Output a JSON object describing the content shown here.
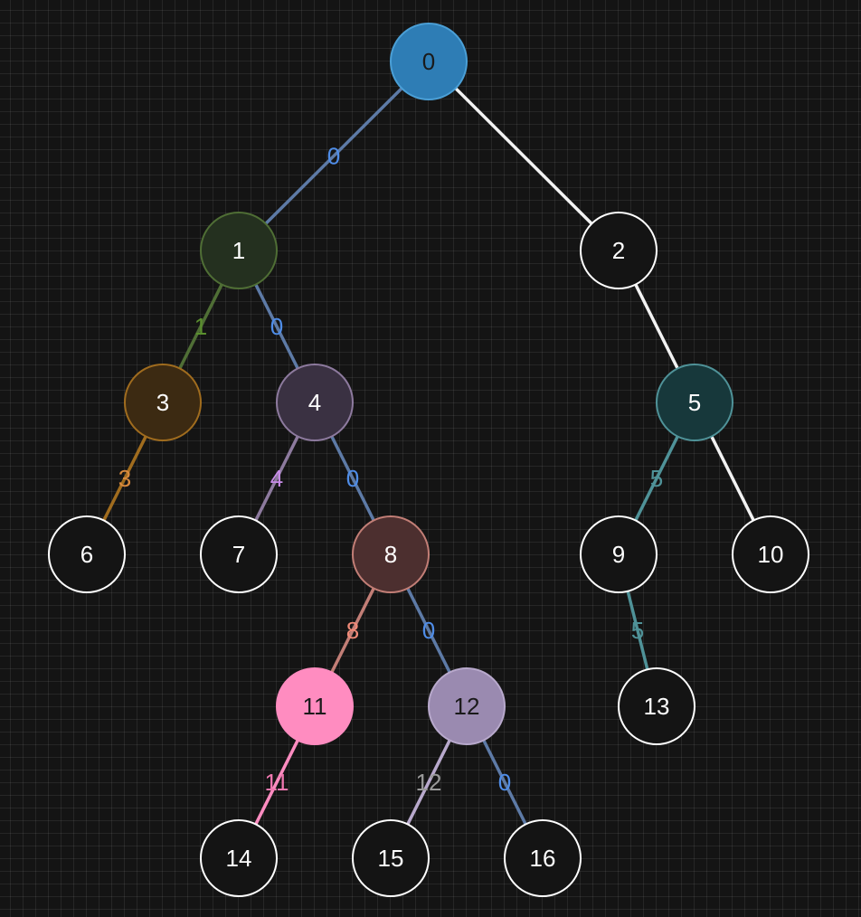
{
  "diagram": {
    "type": "tree",
    "nodes": [
      {
        "id": "0",
        "label": "0",
        "fill": "#2e7db5",
        "stroke": "#4a9fd6",
        "text_color": "#1a1a1a"
      },
      {
        "id": "1",
        "label": "1",
        "fill": "#24301f",
        "stroke": "#4f6e35",
        "text_color": "#ffffff"
      },
      {
        "id": "2",
        "label": "2",
        "fill": "#141414",
        "stroke": "#ffffff",
        "text_color": "#ffffff"
      },
      {
        "id": "3",
        "label": "3",
        "fill": "#3c2a12",
        "stroke": "#a06c1e",
        "text_color": "#ffffff"
      },
      {
        "id": "4",
        "label": "4",
        "fill": "#3a3142",
        "stroke": "#8d7a9e",
        "text_color": "#ffffff"
      },
      {
        "id": "5",
        "label": "5",
        "fill": "#17383b",
        "stroke": "#4f9298",
        "text_color": "#ffffff"
      },
      {
        "id": "6",
        "label": "6",
        "fill": "#141414",
        "stroke": "#ffffff",
        "text_color": "#ffffff"
      },
      {
        "id": "7",
        "label": "7",
        "fill": "#141414",
        "stroke": "#ffffff",
        "text_color": "#ffffff"
      },
      {
        "id": "8",
        "label": "8",
        "fill": "#4c2f2f",
        "stroke": "#c27e76",
        "text_color": "#ffffff"
      },
      {
        "id": "9",
        "label": "9",
        "fill": "#141414",
        "stroke": "#ffffff",
        "text_color": "#ffffff"
      },
      {
        "id": "10",
        "label": "10",
        "fill": "#141414",
        "stroke": "#ffffff",
        "text_color": "#ffffff"
      },
      {
        "id": "11",
        "label": "11",
        "fill": "#ff8cc0",
        "stroke": "#ff8cc0",
        "text_color": "#1a1a1a"
      },
      {
        "id": "12",
        "label": "12",
        "fill": "#9a8ab0",
        "stroke": "#b8a9cc",
        "text_color": "#1a1a1a"
      },
      {
        "id": "13",
        "label": "13",
        "fill": "#141414",
        "stroke": "#ffffff",
        "text_color": "#ffffff"
      },
      {
        "id": "14",
        "label": "14",
        "fill": "#141414",
        "stroke": "#ffffff",
        "text_color": "#ffffff"
      },
      {
        "id": "15",
        "label": "15",
        "fill": "#141414",
        "stroke": "#ffffff",
        "text_color": "#ffffff"
      },
      {
        "id": "16",
        "label": "16",
        "fill": "#141414",
        "stroke": "#ffffff",
        "text_color": "#ffffff"
      }
    ],
    "edges": [
      {
        "from": "0",
        "to": "1",
        "label": "0",
        "color": "#5d7aa6",
        "label_color": "#4f8de8"
      },
      {
        "from": "0",
        "to": "2",
        "label": "",
        "color": "#f2f2f2",
        "label_color": ""
      },
      {
        "from": "1",
        "to": "3",
        "label": "1",
        "color": "#4f6e35",
        "label_color": "#5a8f2e"
      },
      {
        "from": "1",
        "to": "4",
        "label": "0",
        "color": "#5d7aa6",
        "label_color": "#4f8de8"
      },
      {
        "from": "2",
        "to": "5",
        "label": "",
        "color": "#f2f2f2",
        "label_color": ""
      },
      {
        "from": "3",
        "to": "6",
        "label": "3",
        "color": "#a06c1e",
        "label_color": "#d98a3e"
      },
      {
        "from": "4",
        "to": "7",
        "label": "4",
        "color": "#8d7a9e",
        "label_color": "#c88ce8"
      },
      {
        "from": "4",
        "to": "8",
        "label": "0",
        "color": "#5d7aa6",
        "label_color": "#4f8de8"
      },
      {
        "from": "5",
        "to": "9",
        "label": "5",
        "color": "#4f9298",
        "label_color": "#4f9298"
      },
      {
        "from": "5",
        "to": "10",
        "label": "",
        "color": "#f2f2f2",
        "label_color": ""
      },
      {
        "from": "8",
        "to": "11",
        "label": "8",
        "color": "#c27e76",
        "label_color": "#f08a78"
      },
      {
        "from": "8",
        "to": "12",
        "label": "0",
        "color": "#5d7aa6",
        "label_color": "#4f8de8"
      },
      {
        "from": "9",
        "to": "13",
        "label": "5",
        "color": "#4f9298",
        "label_color": "#4f9298"
      },
      {
        "from": "11",
        "to": "14",
        "label": "11",
        "color": "#ff8cc0",
        "label_color": "#f078b0"
      },
      {
        "from": "12",
        "to": "15",
        "label": "12",
        "color": "#b8a9cc",
        "label_color": "#999999"
      },
      {
        "from": "12",
        "to": "16",
        "label": "0",
        "color": "#5d7aa6",
        "label_color": "#4f8de8"
      }
    ]
  }
}
